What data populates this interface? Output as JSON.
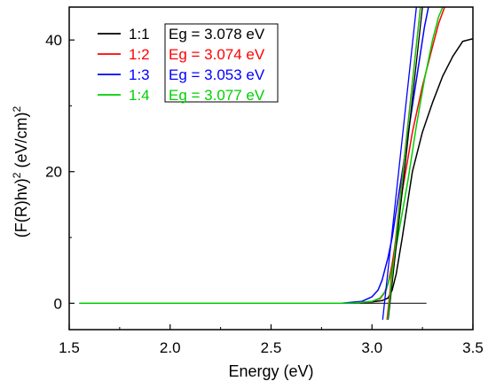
{
  "chart_data": {
    "type": "line",
    "title": "",
    "xlabel": "Energy (eV)",
    "ylabel_parts": {
      "base": "(F(R)hv)",
      "exp1": "2",
      "unit": " (eV/cm)",
      "exp2": "2"
    },
    "xlim": [
      1.5,
      3.5
    ],
    "ylim": [
      -4,
      45
    ],
    "x_ticks": [
      1.5,
      2.0,
      2.5,
      3.0,
      3.5
    ],
    "x_tick_labels": [
      "1.5",
      "2.0",
      "2.5",
      "3.0",
      "3.5"
    ],
    "y_ticks": [
      0,
      20,
      40
    ],
    "y_tick_labels": [
      "0",
      "20",
      "40"
    ],
    "grid": false,
    "legend_position": "top-left",
    "series": [
      {
        "name": "1:1",
        "color": "#000000",
        "x": [
          2.4,
          2.9,
          3.0,
          3.05,
          3.08,
          3.1,
          3.12,
          3.15,
          3.18,
          3.2,
          3.25,
          3.3,
          3.35,
          3.4,
          3.45,
          3.5
        ],
        "y": [
          0,
          0,
          0.2,
          0.4,
          0.8,
          2,
          4.5,
          10,
          16,
          20,
          26,
          30.5,
          34.5,
          37.5,
          39.8,
          40.2
        ]
      },
      {
        "name": "1:2",
        "color": "#ff0000",
        "x": [
          1.55,
          2.9,
          3.0,
          3.04,
          3.06,
          3.08,
          3.1,
          3.12,
          3.15,
          3.2,
          3.25,
          3.3,
          3.33,
          3.36
        ],
        "y": [
          0,
          0,
          0.3,
          0.7,
          1.5,
          3,
          6,
          10,
          17,
          26,
          33,
          39,
          42.5,
          45
        ]
      },
      {
        "name": "1:3",
        "color": "#0000ff",
        "x": [
          1.55,
          2.85,
          2.95,
          3.0,
          3.03,
          3.05,
          3.08,
          3.1,
          3.13,
          3.16,
          3.2,
          3.23,
          3.26,
          3.28
        ],
        "y": [
          0,
          0,
          0.3,
          1,
          2,
          3.5,
          7,
          10,
          16,
          22,
          30,
          36,
          42,
          45
        ]
      },
      {
        "name": "1:4",
        "color": "#00d000",
        "x": [
          1.55,
          2.9,
          3.0,
          3.04,
          3.07,
          3.09,
          3.11,
          3.14,
          3.18,
          3.22,
          3.26,
          3.3,
          3.33,
          3.35
        ],
        "y": [
          0,
          0,
          0.3,
          0.8,
          2,
          4,
          7,
          12,
          19,
          27,
          34,
          40,
          43.5,
          45
        ]
      }
    ],
    "fit_lines": [
      {
        "name": "1:1",
        "color": "#000000",
        "x": [
          3.08,
          3.25
        ],
        "y": [
          -2.5,
          45
        ]
      },
      {
        "name": "1:2",
        "color": "#ff0000",
        "x": [
          3.074,
          3.24
        ],
        "y": [
          -2.5,
          45
        ]
      },
      {
        "name": "1:3",
        "color": "#0000ff",
        "x": [
          3.053,
          3.22
        ],
        "y": [
          -2.5,
          45
        ]
      },
      {
        "name": "1:4",
        "color": "#00d000",
        "x": [
          3.077,
          3.24
        ],
        "y": [
          -2.5,
          45
        ]
      }
    ],
    "baseline": {
      "color": "#000000",
      "x": [
        2.9,
        3.27
      ],
      "y": [
        0,
        0
      ]
    },
    "legend": {
      "entries": [
        {
          "label": "1:1",
          "color": "#000000"
        },
        {
          "label": "1:2",
          "color": "#ff0000"
        },
        {
          "label": "1:3",
          "color": "#0000ff"
        },
        {
          "label": "1:4",
          "color": "#00d000"
        }
      ]
    },
    "annotations": [
      {
        "text": "Eg = 3.078 eV",
        "color": "#000000"
      },
      {
        "text": "Eg = 3.074 eV",
        "color": "#ff0000"
      },
      {
        "text": "Eg = 3.053 eV",
        "color": "#0000ff"
      },
      {
        "text": "Eg = 3.077 eV",
        "color": "#00d000"
      }
    ]
  }
}
